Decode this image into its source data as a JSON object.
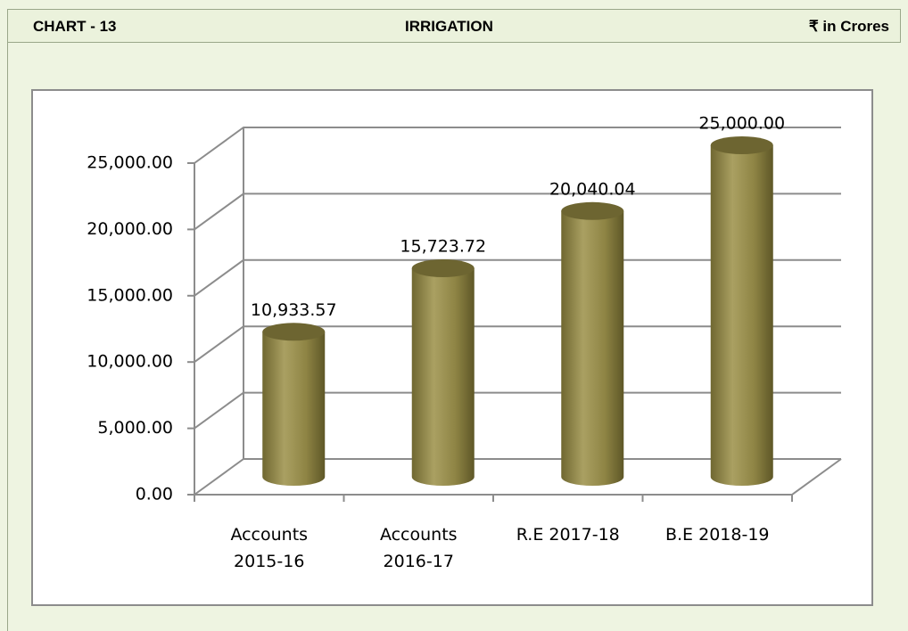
{
  "chart_data": {
    "type": "bar",
    "label": "CHART - 13",
    "title": "IRRIGATION",
    "unit": "₹ in Crores",
    "categories": [
      "Accounts 2015-16",
      "Accounts 2016-17",
      "R.E 2017-18",
      "B.E 2018-19"
    ],
    "values": [
      10933.57,
      15723.72,
      20040.04,
      25000
    ],
    "value_labels": [
      "10,933.57",
      "15,723.72",
      "20,040.04",
      "25,000.00"
    ],
    "color": "#8e8444",
    "ylim": [
      0,
      25000
    ],
    "yticks": [
      {
        "value": 0,
        "label": "0.00"
      },
      {
        "value": 5000,
        "label": "5,000.00"
      },
      {
        "value": 10000,
        "label": "10,000.00"
      },
      {
        "value": 15000,
        "label": "15,000.00"
      },
      {
        "value": 20000,
        "label": "20,000.00"
      },
      {
        "value": 25000,
        "label": "25,000.00"
      }
    ],
    "grid": true
  }
}
